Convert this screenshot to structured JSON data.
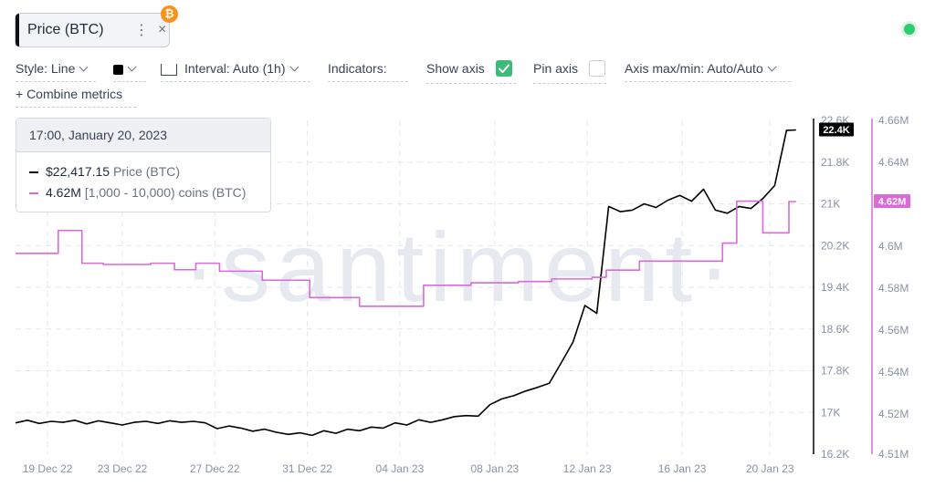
{
  "metric_chip": {
    "label": "Price (BTC)",
    "more": "⋮",
    "close": "×",
    "accent": "#111111",
    "badge": "₿",
    "badge_color": "#f7931a"
  },
  "status": {
    "color": "#2ecc71"
  },
  "toolbar": {
    "style_label": "Style: Line",
    "color": "#000000",
    "interval_label": "Interval: Auto (1h)",
    "indicators_label": "Indicators:",
    "show_axis_label": "Show axis",
    "show_axis_checked": true,
    "show_axis_color": "#3dbb7a",
    "pin_axis_label": "Pin axis",
    "pin_axis_checked": false,
    "axis_minmax_label": "Axis max/min: Auto/Auto",
    "combine_label": "+ Combine metrics"
  },
  "tooltip": {
    "datetime": "17:00, January 20, 2023",
    "rows": [
      {
        "value": "$22,417.15",
        "label": "Price (BTC)",
        "color": "#000000"
      },
      {
        "value": "4.62M",
        "label": "[1,000 - 10,000) coins (BTC)",
        "color": "#d96ad6"
      }
    ]
  },
  "watermark": "·santiment·",
  "chart_data": {
    "type": "line",
    "x_ticks": [
      "19 Dec 22",
      "23 Dec 22",
      "27 Dec 22",
      "31 Dec 22",
      "04 Jan 23",
      "08 Jan 23",
      "12 Jan 23",
      "16 Jan 23",
      "20 Jan 23"
    ],
    "axes": {
      "price": {
        "ticks": [
          "22.6K",
          "21.8K",
          "21K",
          "20.2K",
          "19.4K",
          "18.6K",
          "17.8K",
          "17K",
          "16.2K"
        ],
        "ylim": [
          16200,
          22600
        ],
        "last_label": "22.4K",
        "color": "#000000"
      },
      "holders": {
        "ticks": [
          "4.66M",
          "4.64M",
          "4.62M",
          "4.6M",
          "4.58M",
          "4.56M",
          "4.54M",
          "4.52M",
          "4.51M"
        ],
        "ylim": [
          4.51,
          4.66
        ],
        "last_label": "4.62M",
        "color": "#d96ad6"
      }
    },
    "series": [
      {
        "name": "Price (BTC)",
        "axis": "price",
        "x": [
          0,
          0.5,
          1,
          1.5,
          2,
          2.5,
          3,
          3.5,
          4,
          4.5,
          5,
          5.5,
          6,
          6.5,
          7,
          7.5,
          8,
          8.5,
          9,
          9.5,
          10,
          10.5,
          11,
          11.5,
          12,
          12.5,
          13,
          13.5,
          14,
          14.5,
          15,
          15.5,
          16,
          16.5,
          17,
          17.5,
          18,
          18.5,
          19,
          19.5,
          20,
          20.5,
          21,
          21.5,
          22,
          22.5,
          23,
          23.5,
          24,
          24.5,
          25,
          25.5,
          26,
          26.5,
          27,
          27.5,
          28,
          28.5,
          29,
          29.5,
          30,
          30.5,
          31,
          31.5,
          32,
          32.5,
          32.9
        ],
        "y": [
          16800,
          16850,
          16790,
          16830,
          16810,
          16850,
          16780,
          16840,
          16800,
          16760,
          16810,
          16830,
          16790,
          16840,
          16810,
          16830,
          16800,
          16690,
          16740,
          16700,
          16640,
          16680,
          16620,
          16580,
          16610,
          16560,
          16650,
          16600,
          16680,
          16650,
          16720,
          16700,
          16800,
          16760,
          16860,
          16810,
          16860,
          16920,
          16940,
          16930,
          17150,
          17260,
          17320,
          17410,
          17480,
          17560,
          17950,
          18350,
          19050,
          18900,
          20950,
          20850,
          20880,
          21000,
          20930,
          21070,
          21160,
          21050,
          21280,
          20880,
          20820,
          20950,
          20910,
          21100,
          21350,
          22410,
          22417
        ]
      },
      {
        "name": "[1,000 - 10,000) coins (BTC)",
        "axis": "holders",
        "step": true,
        "x": [
          0,
          1.8,
          2.8,
          3.7,
          5.7,
          6.7,
          7.6,
          8.6,
          10.4,
          12.4,
          14.5,
          15.4,
          17.2,
          19.2,
          21.2,
          22.6,
          24.3,
          24.9,
          26.3,
          28.2,
          29.8,
          30.4,
          31.5,
          32.6
        ],
        "y": [
          4.5966,
          4.6075,
          4.5919,
          4.5913,
          4.5919,
          4.5888,
          4.5919,
          4.5881,
          4.5838,
          4.5755,
          4.5714,
          4.5714,
          4.5814,
          4.5826,
          4.5832,
          4.5844,
          4.5852,
          4.5886,
          4.5929,
          4.5929,
          4.6015,
          4.6215,
          4.6064,
          4.6213
        ]
      }
    ],
    "grid": true,
    "legend": "tooltip top-left"
  }
}
